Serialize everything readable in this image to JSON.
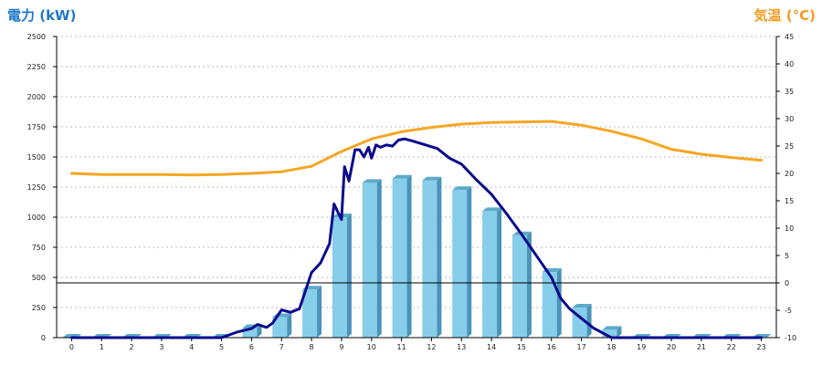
{
  "titles": {
    "left": "電力 (kW)",
    "right": "気温 (°C)"
  },
  "colors": {
    "left_title": "#1f78c8",
    "right_title": "#f39a1e",
    "bar_front": "#87ceeb",
    "bar_side": "#4a94b8",
    "bar_top": "#5eaacb",
    "power_line": "#0a0a8c",
    "temp_line": "#f5a623",
    "grid": "#bbbbbb"
  },
  "chart_data": {
    "type": "bar",
    "categories": [
      "0",
      "1",
      "2",
      "3",
      "4",
      "5",
      "6",
      "7",
      "8",
      "9",
      "10",
      "11",
      "12",
      "13",
      "14",
      "15",
      "16",
      "17",
      "18",
      "19",
      "20",
      "21",
      "22",
      "23"
    ],
    "left_axis": {
      "ylim": [
        0,
        2500
      ],
      "ticks": [
        0,
        250,
        500,
        750,
        1000,
        1250,
        1500,
        1750,
        2000,
        2250,
        2500
      ]
    },
    "right_axis": {
      "ylim": [
        -10,
        45
      ],
      "ticks": [
        -10,
        -5,
        0,
        5,
        10,
        15,
        20,
        25,
        30,
        35,
        40,
        45
      ]
    },
    "grid": true,
    "zero_reference_line": 0,
    "series": [
      {
        "type": "bar",
        "axis": "left",
        "values": [
          0,
          0,
          0,
          0,
          0,
          0,
          80,
          170,
          400,
          1000,
          1285,
          1320,
          1305,
          1225,
          1050,
          850,
          545,
          250,
          65,
          0,
          0,
          0,
          0,
          0
        ]
      },
      {
        "type": "line",
        "axis": "left",
        "points": [
          [
            0,
            0
          ],
          [
            5,
            0
          ],
          [
            5.5,
            45
          ],
          [
            6,
            75
          ],
          [
            6.2,
            110
          ],
          [
            6.5,
            85
          ],
          [
            6.7,
            120
          ],
          [
            7,
            230
          ],
          [
            7.3,
            210
          ],
          [
            7.6,
            240
          ],
          [
            8,
            540
          ],
          [
            8.3,
            620
          ],
          [
            8.6,
            780
          ],
          [
            8.75,
            1110
          ],
          [
            9,
            980
          ],
          [
            9.1,
            1420
          ],
          [
            9.25,
            1300
          ],
          [
            9.45,
            1560
          ],
          [
            9.6,
            1560
          ],
          [
            9.75,
            1500
          ],
          [
            9.9,
            1580
          ],
          [
            10,
            1490
          ],
          [
            10.15,
            1600
          ],
          [
            10.3,
            1580
          ],
          [
            10.5,
            1600
          ],
          [
            10.7,
            1590
          ],
          [
            10.9,
            1640
          ],
          [
            11.1,
            1650
          ],
          [
            11.4,
            1630
          ],
          [
            11.8,
            1600
          ],
          [
            12.2,
            1570
          ],
          [
            12.6,
            1490
          ],
          [
            13,
            1440
          ],
          [
            13.5,
            1310
          ],
          [
            14,
            1190
          ],
          [
            14.5,
            1030
          ],
          [
            15,
            860
          ],
          [
            15.5,
            680
          ],
          [
            16,
            500
          ],
          [
            16.3,
            330
          ],
          [
            16.6,
            240
          ],
          [
            17,
            160
          ],
          [
            17.4,
            80
          ],
          [
            18,
            -10
          ],
          [
            23,
            -10
          ]
        ]
      },
      {
        "type": "line",
        "axis": "right",
        "points": [
          [
            0,
            20
          ],
          [
            1,
            19.8
          ],
          [
            2,
            19.8
          ],
          [
            3,
            19.8
          ],
          [
            4,
            19.7
          ],
          [
            5,
            19.8
          ],
          [
            6,
            20
          ],
          [
            7,
            20.3
          ],
          [
            8,
            21.3
          ],
          [
            9,
            24
          ],
          [
            10,
            26.3
          ],
          [
            11,
            27.6
          ],
          [
            12,
            28.4
          ],
          [
            13,
            29
          ],
          [
            14,
            29.3
          ],
          [
            15,
            29.4
          ],
          [
            16,
            29.5
          ],
          [
            17,
            28.8
          ],
          [
            18,
            27.7
          ],
          [
            19,
            26.3
          ],
          [
            20,
            24.4
          ],
          [
            21,
            23.5
          ],
          [
            22,
            22.9
          ],
          [
            23,
            22.4
          ]
        ]
      }
    ]
  }
}
